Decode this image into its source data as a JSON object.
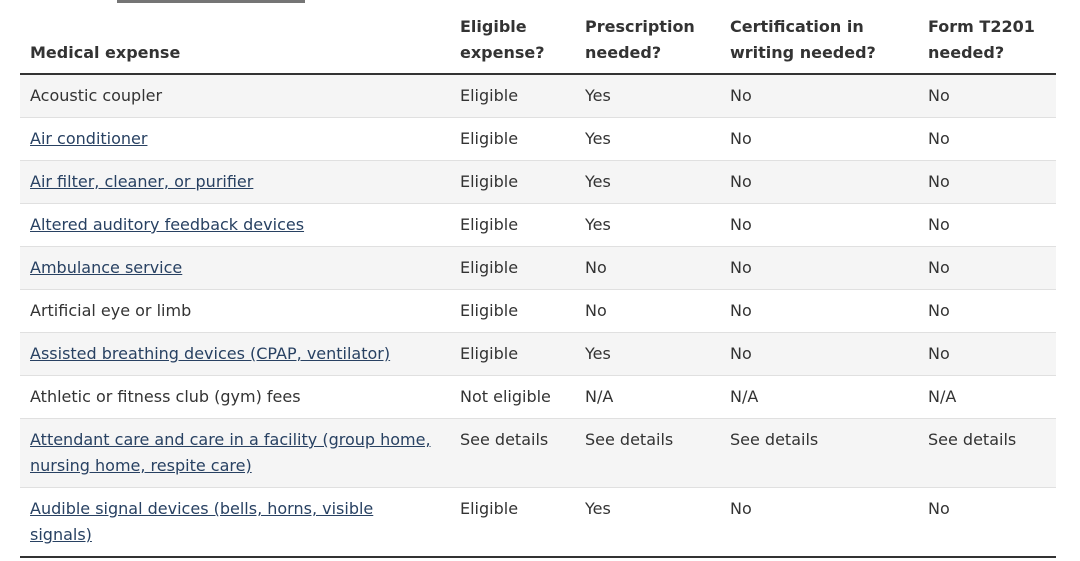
{
  "colors": {
    "link": "#284162",
    "text": "#333333",
    "stripe": "#f5f5f5",
    "divider": "#e0e0e0",
    "border_dark": "#333333"
  },
  "table": {
    "headers": {
      "expense": "Medical expense",
      "eligible": "Eligible expense?",
      "prescription": "Prescription needed?",
      "certification": "Certification in writing needed?",
      "form_t2201": "Form T2201 needed?"
    },
    "rows": [
      {
        "expense": "Acoustic coupler",
        "is_link": false,
        "eligible": "Eligible",
        "prescription": "Yes",
        "certification": "No",
        "form_t2201": "No"
      },
      {
        "expense": "Air conditioner",
        "is_link": true,
        "eligible": "Eligible",
        "prescription": "Yes",
        "certification": "No",
        "form_t2201": "No"
      },
      {
        "expense": "Air filter, cleaner, or purifier",
        "is_link": true,
        "eligible": "Eligible",
        "prescription": "Yes",
        "certification": "No",
        "form_t2201": "No"
      },
      {
        "expense": "Altered auditory feedback devices",
        "is_link": true,
        "eligible": "Eligible",
        "prescription": "Yes",
        "certification": "No",
        "form_t2201": "No"
      },
      {
        "expense": "Ambulance service",
        "is_link": true,
        "eligible": "Eligible",
        "prescription": "No",
        "certification": "No",
        "form_t2201": "No"
      },
      {
        "expense": "Artificial eye or limb",
        "is_link": false,
        "eligible": "Eligible",
        "prescription": "No",
        "certification": "No",
        "form_t2201": "No"
      },
      {
        "expense": "Assisted breathing devices (CPAP, ventilator)",
        "is_link": true,
        "eligible": "Eligible",
        "prescription": "Yes",
        "certification": "No",
        "form_t2201": "No"
      },
      {
        "expense": "Athletic or fitness club (gym) fees",
        "is_link": false,
        "eligible": "Not eligible",
        "prescription": "N/A",
        "certification": "N/A",
        "form_t2201": "N/A"
      },
      {
        "expense": "Attendant care and care in a facility (group home, nursing home, respite care)",
        "is_link": true,
        "eligible": "See details",
        "prescription": "See details",
        "certification": "See details",
        "form_t2201": "See details"
      },
      {
        "expense": "Audible signal devices (bells, horns, visible signals)",
        "is_link": true,
        "eligible": "Eligible",
        "prescription": "Yes",
        "certification": "No",
        "form_t2201": "No"
      }
    ]
  }
}
